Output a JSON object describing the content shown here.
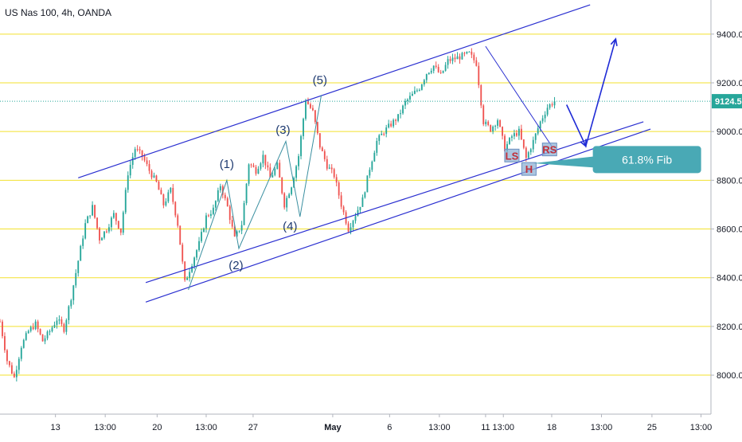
{
  "header": {
    "title": "US Nas 100, 4h, OANDA"
  },
  "colors": {
    "bull": "#26a69a",
    "bear": "#ef5350",
    "channel": "#2a2fd0",
    "horizontal": "#f3e12e",
    "wave_line": "#3a8fa0",
    "label_box": "#8fb2d4",
    "callout": "#49a9b5",
    "projection": "#1f2bd6",
    "price_tag": "#26a69a"
  },
  "chart_data": {
    "type": "candlestick",
    "symbol": "US Nas 100",
    "timeframe": "4h",
    "source": "OANDA",
    "ylim": [
      7840,
      9540
    ],
    "xlim": [
      0,
      100
    ],
    "y_ticks": [
      8000.0,
      8200.0,
      8400.0,
      8600.0,
      8800.0,
      9000.0,
      9200.0,
      9400.0
    ],
    "y_tick_labels": [
      "8000.0",
      "8200.0",
      "8400.0",
      "8600.0",
      "8800.0",
      "9000.0",
      "9200.0",
      "9400.0"
    ],
    "x_ticks": [
      {
        "label": "13",
        "x": 7.8
      },
      {
        "label": "13:00",
        "x": 14.8
      },
      {
        "label": "20",
        "x": 22.1
      },
      {
        "label": "13:00",
        "x": 29.0
      },
      {
        "label": "27",
        "x": 35.6
      },
      {
        "label": "May",
        "x": 46.8
      },
      {
        "label": "6",
        "x": 54.8
      },
      {
        "label": "13:00",
        "x": 61.8
      },
      {
        "label": "11",
        "x": 68.3
      },
      {
        "label": "13:00",
        "x": 70.8
      },
      {
        "label": "18",
        "x": 77.6
      },
      {
        "label": "13:00",
        "x": 84.6
      },
      {
        "label": "25",
        "x": 91.7
      },
      {
        "label": "13:00",
        "x": 98.6
      }
    ],
    "last_price": 9124.5,
    "last_price_label": "9124.5",
    "close_path": [
      [
        0,
        8220
      ],
      [
        1,
        8060
      ],
      [
        2,
        7990
      ],
      [
        3,
        8120
      ],
      [
        4,
        8180
      ],
      [
        5,
        8210
      ],
      [
        6,
        8140
      ],
      [
        7,
        8180
      ],
      [
        8,
        8230
      ],
      [
        9,
        8190
      ],
      [
        10,
        8320
      ],
      [
        11,
        8470
      ],
      [
        12,
        8620
      ],
      [
        13,
        8690
      ],
      [
        14,
        8560
      ],
      [
        15,
        8600
      ],
      [
        16,
        8660
      ],
      [
        17,
        8590
      ],
      [
        18,
        8830
      ],
      [
        19,
        8930
      ],
      [
        20,
        8900
      ],
      [
        21,
        8840
      ],
      [
        22,
        8790
      ],
      [
        23,
        8700
      ],
      [
        24,
        8760
      ],
      [
        25,
        8620
      ],
      [
        26,
        8380
      ],
      [
        27,
        8460
      ],
      [
        28,
        8540
      ],
      [
        29,
        8650
      ],
      [
        30,
        8680
      ],
      [
        31,
        8780
      ],
      [
        32,
        8690
      ],
      [
        33,
        8560
      ],
      [
        34,
        8620
      ],
      [
        35,
        8870
      ],
      [
        36,
        8840
      ],
      [
        37,
        8900
      ],
      [
        38,
        8810
      ],
      [
        39,
        8860
      ],
      [
        40,
        8700
      ],
      [
        41,
        8780
      ],
      [
        42,
        8900
      ],
      [
        43,
        9130
      ],
      [
        44,
        9080
      ],
      [
        45,
        8940
      ],
      [
        46,
        8860
      ],
      [
        47,
        8820
      ],
      [
        48,
        8700
      ],
      [
        49,
        8600
      ],
      [
        50,
        8660
      ],
      [
        51,
        8720
      ],
      [
        52,
        8850
      ],
      [
        53,
        8960
      ],
      [
        54,
        9000
      ],
      [
        55,
        9030
      ],
      [
        56,
        9060
      ],
      [
        57,
        9120
      ],
      [
        58,
        9150
      ],
      [
        59,
        9180
      ],
      [
        60,
        9240
      ],
      [
        61,
        9270
      ],
      [
        62,
        9230
      ],
      [
        63,
        9290
      ],
      [
        64,
        9300
      ],
      [
        65,
        9310
      ],
      [
        66,
        9320
      ],
      [
        67,
        9280
      ],
      [
        68,
        9040
      ],
      [
        69,
        9010
      ],
      [
        70,
        9050
      ],
      [
        71,
        8930
      ],
      [
        72,
        8980
      ],
      [
        73,
        9000
      ],
      [
        74,
        8890
      ],
      [
        75,
        8960
      ],
      [
        76,
        9040
      ],
      [
        77,
        9100
      ],
      [
        78,
        9124.5
      ]
    ],
    "channel_lines": [
      {
        "name": "upper",
        "p1": [
          11,
          8810
        ],
        "p2": [
          83,
          9520
        ]
      },
      {
        "name": "lower-1",
        "p1": [
          20.5,
          8380
        ],
        "p2": [
          90.5,
          9040
        ]
      },
      {
        "name": "lower-2",
        "p1": [
          20.5,
          8300
        ],
        "p2": [
          91.5,
          9010
        ]
      }
    ],
    "wave_path": [
      [
        26.5,
        8350
      ],
      [
        31.9,
        8800
      ],
      [
        33.6,
        8520
      ],
      [
        40.2,
        8960
      ],
      [
        42.2,
        8650
      ],
      [
        45.2,
        9150
      ]
    ],
    "hs_path": [
      [
        68.3,
        9350
      ],
      [
        77.6,
        8940
      ]
    ],
    "wave_labels": [
      {
        "text": "(1)",
        "x": 31.9,
        "y": 8850
      },
      {
        "text": "(2)",
        "x": 33.2,
        "y": 8435
      },
      {
        "text": "(3)",
        "x": 39.8,
        "y": 8990
      },
      {
        "text": "(4)",
        "x": 40.8,
        "y": 8595
      },
      {
        "text": "(5)",
        "x": 45.0,
        "y": 9195
      }
    ],
    "pattern_labels": [
      {
        "text": "LS",
        "x": 72.0,
        "y": 8895
      },
      {
        "text": "H",
        "x": 74.4,
        "y": 8840
      },
      {
        "text": "RS",
        "x": 77.3,
        "y": 8920
      }
    ],
    "callout": {
      "text": "61.8% Fib",
      "anchor": [
        75.0,
        8870
      ],
      "x": 91.0,
      "y": 8885
    },
    "projection": [
      [
        79.7,
        9110
      ],
      [
        82.4,
        8940
      ],
      [
        86.6,
        9380
      ]
    ]
  }
}
